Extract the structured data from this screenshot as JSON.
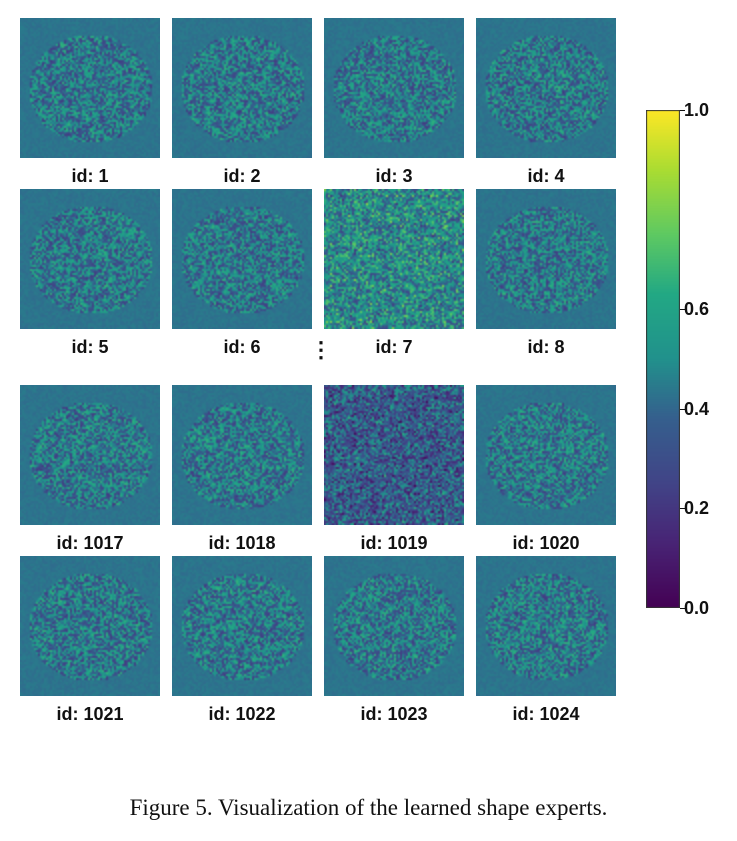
{
  "figure": {
    "caption": "Figure 5. Visualization of the learned shape experts.",
    "ellipsis": "⋮",
    "colormap": "viridis",
    "tiles": [
      {
        "label": "id: 1"
      },
      {
        "label": "id: 2"
      },
      {
        "label": "id: 3"
      },
      {
        "label": "id: 4"
      },
      {
        "label": "id: 5"
      },
      {
        "label": "id: 6"
      },
      {
        "label": "id: 7"
      },
      {
        "label": "id: 8"
      },
      {
        "label": "id: 1017"
      },
      {
        "label": "id: 1018"
      },
      {
        "label": "id: 1019"
      },
      {
        "label": "id: 1020"
      },
      {
        "label": "id: 1021"
      },
      {
        "label": "id: 1022"
      },
      {
        "label": "id: 1023"
      },
      {
        "label": "id: 1024"
      }
    ],
    "colorbar": {
      "ticks": [
        "1.0",
        "0.6",
        "0.4",
        "0.2",
        "0.0"
      ],
      "tick_values": [
        1.0,
        0.6,
        0.4,
        0.2,
        0.0
      ],
      "range": [
        0.0,
        1.0
      ]
    }
  }
}
